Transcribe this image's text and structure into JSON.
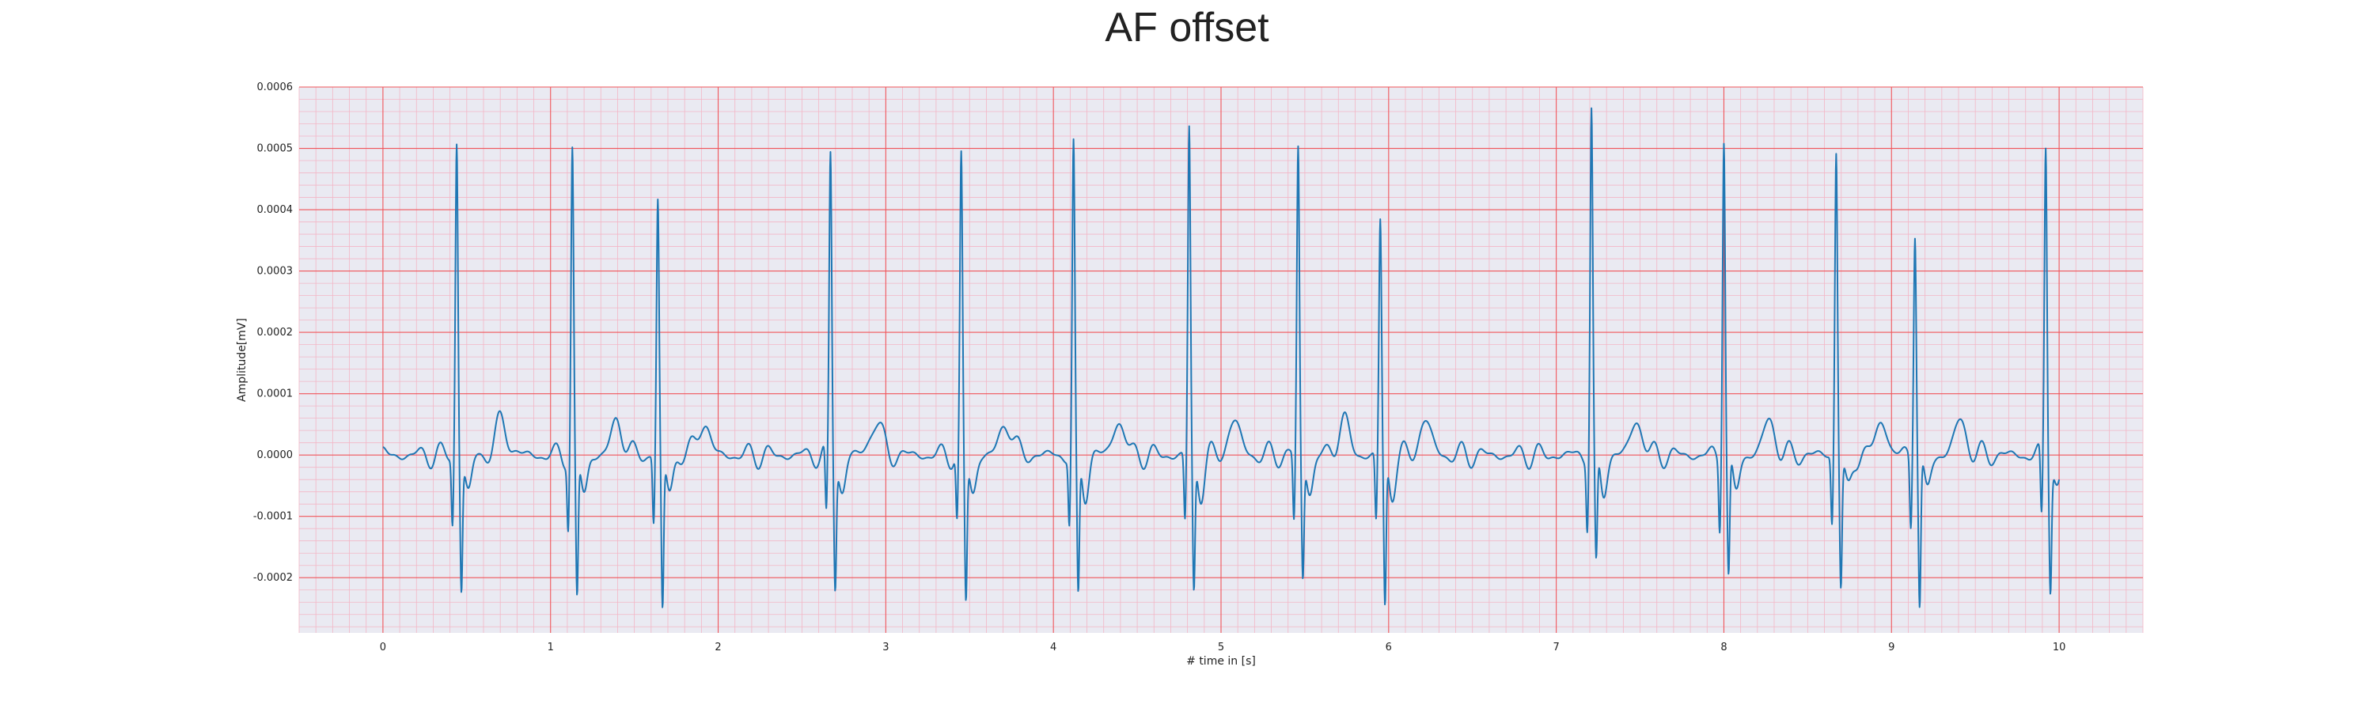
{
  "chart_data": {
    "type": "line",
    "title": "AF offset",
    "xlabel": "# time in [s]",
    "ylabel": "Amplitude[mV]",
    "xlim": [
      -0.5,
      10.5
    ],
    "ylim": [
      -0.00029,
      0.0006
    ],
    "xticks": [
      0,
      1,
      2,
      3,
      4,
      5,
      6,
      7,
      8,
      9,
      10
    ],
    "yticks": [
      -0.0002,
      -0.0001,
      0.0,
      0.0001,
      0.0002,
      0.0003,
      0.0004,
      0.0005,
      0.0006
    ],
    "ytick_labels": [
      "-0.0002",
      "-0.0001",
      "0.0000",
      "0.0001",
      "0.0002",
      "0.0003",
      "0.0004",
      "0.0005",
      "0.0006"
    ],
    "grid": true,
    "legend": "none",
    "colors": {
      "line": "#1f77b4",
      "background": "#eaeaf2",
      "major_grid": "#f0555a",
      "minor_grid": "#f3b6c6"
    },
    "series": [
      {
        "beats": [
          {
            "t": 0.44,
            "r": 0.00051,
            "s": -0.000215
          },
          {
            "t": 1.13,
            "r": 0.000495,
            "s": -0.000235
          },
          {
            "t": 1.64,
            "r": 0.000415,
            "s": -0.00025
          },
          {
            "t": 2.67,
            "r": 0.00049,
            "s": -0.000205
          },
          {
            "t": 3.45,
            "r": 0.00048,
            "s": -0.000235
          },
          {
            "t": 4.12,
            "r": 0.0005,
            "s": -0.000235
          },
          {
            "t": 4.81,
            "r": 0.00053,
            "s": -0.00022
          },
          {
            "t": 5.46,
            "r": 0.0005,
            "s": -0.000195
          },
          {
            "t": 5.95,
            "r": 0.00038,
            "s": -0.000245
          },
          {
            "t": 7.21,
            "r": 0.000565,
            "s": -0.000185
          },
          {
            "t": 8.0,
            "r": 0.000525,
            "s": -0.0002
          },
          {
            "t": 8.67,
            "r": 0.0005,
            "s": -0.00021
          },
          {
            "t": 9.14,
            "r": 0.000375,
            "s": -0.000245
          },
          {
            "t": 9.92,
            "r": 0.00051,
            "s": -0.0002
          }
        ]
      }
    ]
  }
}
